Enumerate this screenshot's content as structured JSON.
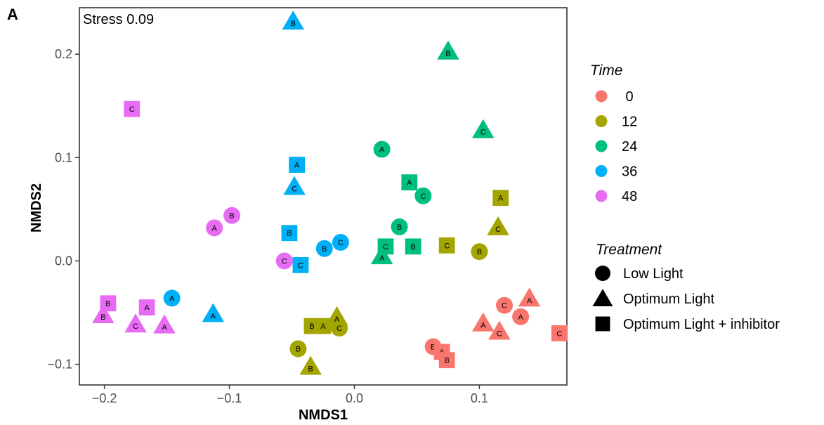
{
  "chart_data": {
    "type": "scatter",
    "panel_label": "A",
    "annotation": "Stress 0.09",
    "xlabel": "NMDS1",
    "ylabel": "NMDS2",
    "xlim": [
      -0.22,
      0.17
    ],
    "ylim": [
      -0.12,
      0.245
    ],
    "x_ticks": [
      -0.2,
      -0.1,
      0.0,
      0.1
    ],
    "x_tick_labels": [
      "−0.2",
      "−0.1",
      "0.0",
      "0.1"
    ],
    "y_ticks": [
      -0.1,
      0.0,
      0.1,
      0.2
    ],
    "y_tick_labels": [
      "−0.1",
      "0.0",
      "0.1",
      "0.2"
    ],
    "grid": false,
    "legend_position": "right",
    "color_legend": {
      "title": "Time",
      "entries": [
        {
          "label": " 0",
          "value": "0",
          "color": "#F8766D"
        },
        {
          "label": "12",
          "value": "12",
          "color": "#A3A500"
        },
        {
          "label": "24",
          "value": "24",
          "color": "#00BF7D"
        },
        {
          "label": "36",
          "value": "36",
          "color": "#00B0F6"
        },
        {
          "label": "48",
          "value": "48",
          "color": "#E76BF3"
        }
      ]
    },
    "shape_legend": {
      "title": "Treatment",
      "entries": [
        {
          "label": "Low Light",
          "shape": "circle"
        },
        {
          "label": "Optimum Light",
          "shape": "triangle"
        },
        {
          "label": "Optimum Light + inhibitor",
          "shape": "square"
        }
      ]
    },
    "points": [
      {
        "x": 0.063,
        "y": -0.083,
        "time": "0",
        "treatment": "circle",
        "label": "B"
      },
      {
        "x": 0.12,
        "y": -0.043,
        "time": "0",
        "treatment": "circle",
        "label": "C"
      },
      {
        "x": 0.133,
        "y": -0.054,
        "time": "0",
        "treatment": "circle",
        "label": "A"
      },
      {
        "x": 0.14,
        "y": -0.036,
        "time": "0",
        "treatment": "triangle",
        "label": "A"
      },
      {
        "x": 0.103,
        "y": -0.06,
        "time": "0",
        "treatment": "triangle",
        "label": "A"
      },
      {
        "x": 0.116,
        "y": -0.068,
        "time": "0",
        "treatment": "triangle",
        "label": "C"
      },
      {
        "x": 0.07,
        "y": -0.088,
        "time": "0",
        "treatment": "square",
        "label": "A"
      },
      {
        "x": 0.074,
        "y": -0.096,
        "time": "0",
        "treatment": "square",
        "label": "B"
      },
      {
        "x": 0.164,
        "y": -0.07,
        "time": "0",
        "treatment": "square",
        "label": "C"
      },
      {
        "x": 0.1,
        "y": 0.009,
        "time": "12",
        "treatment": "circle",
        "label": "B"
      },
      {
        "x": -0.045,
        "y": -0.085,
        "time": "12",
        "treatment": "circle",
        "label": "B"
      },
      {
        "x": -0.012,
        "y": -0.065,
        "time": "12",
        "treatment": "circle",
        "label": "C"
      },
      {
        "x": 0.115,
        "y": 0.033,
        "time": "12",
        "treatment": "triangle",
        "label": "C"
      },
      {
        "x": -0.035,
        "y": -0.102,
        "time": "12",
        "treatment": "triangle",
        "label": "B"
      },
      {
        "x": -0.014,
        "y": -0.054,
        "time": "12",
        "treatment": "triangle",
        "label": "A"
      },
      {
        "x": 0.117,
        "y": 0.061,
        "time": "12",
        "treatment": "square",
        "label": "A"
      },
      {
        "x": 0.074,
        "y": 0.015,
        "time": "12",
        "treatment": "square",
        "label": "C"
      },
      {
        "x": -0.034,
        "y": -0.063,
        "time": "12",
        "treatment": "square",
        "label": "B"
      },
      {
        "x": -0.025,
        "y": -0.063,
        "time": "12",
        "treatment": "square",
        "label": "A"
      },
      {
        "x": 0.022,
        "y": 0.108,
        "time": "24",
        "treatment": "circle",
        "label": "A"
      },
      {
        "x": 0.055,
        "y": 0.063,
        "time": "24",
        "treatment": "circle",
        "label": "C"
      },
      {
        "x": 0.036,
        "y": 0.033,
        "time": "24",
        "treatment": "circle",
        "label": "B"
      },
      {
        "x": 0.075,
        "y": 0.203,
        "time": "24",
        "treatment": "triangle",
        "label": "B"
      },
      {
        "x": 0.103,
        "y": 0.127,
        "time": "24",
        "treatment": "triangle",
        "label": "C"
      },
      {
        "x": 0.022,
        "y": 0.005,
        "time": "24",
        "treatment": "triangle",
        "label": "A"
      },
      {
        "x": 0.044,
        "y": 0.076,
        "time": "24",
        "treatment": "square",
        "label": "A"
      },
      {
        "x": 0.047,
        "y": 0.014,
        "time": "24",
        "treatment": "square",
        "label": "B"
      },
      {
        "x": 0.025,
        "y": 0.014,
        "time": "24",
        "treatment": "square",
        "label": "C"
      },
      {
        "x": -0.024,
        "y": 0.012,
        "time": "36",
        "treatment": "circle",
        "label": "B"
      },
      {
        "x": -0.011,
        "y": 0.018,
        "time": "36",
        "treatment": "circle",
        "label": "C"
      },
      {
        "x": -0.146,
        "y": -0.036,
        "time": "36",
        "treatment": "circle",
        "label": "A"
      },
      {
        "x": -0.049,
        "y": 0.232,
        "time": "36",
        "treatment": "triangle",
        "label": "B"
      },
      {
        "x": -0.048,
        "y": 0.072,
        "time": "36",
        "treatment": "triangle",
        "label": "C"
      },
      {
        "x": -0.113,
        "y": -0.051,
        "time": "36",
        "treatment": "triangle",
        "label": "A"
      },
      {
        "x": -0.046,
        "y": 0.093,
        "time": "36",
        "treatment": "square",
        "label": "A"
      },
      {
        "x": -0.052,
        "y": 0.027,
        "time": "36",
        "treatment": "square",
        "label": "B"
      },
      {
        "x": -0.043,
        "y": -0.004,
        "time": "36",
        "treatment": "square",
        "label": "C"
      },
      {
        "x": -0.112,
        "y": 0.032,
        "time": "48",
        "treatment": "circle",
        "label": "A"
      },
      {
        "x": -0.098,
        "y": 0.044,
        "time": "48",
        "treatment": "circle",
        "label": "B"
      },
      {
        "x": -0.056,
        "y": 0.0,
        "time": "48",
        "treatment": "circle",
        "label": "C"
      },
      {
        "x": -0.201,
        "y": -0.052,
        "time": "48",
        "treatment": "triangle",
        "label": "B"
      },
      {
        "x": -0.175,
        "y": -0.061,
        "time": "48",
        "treatment": "triangle",
        "label": "C"
      },
      {
        "x": -0.152,
        "y": -0.062,
        "time": "48",
        "treatment": "triangle",
        "label": "A"
      },
      {
        "x": -0.178,
        "y": 0.147,
        "time": "48",
        "treatment": "square",
        "label": "C"
      },
      {
        "x": -0.197,
        "y": -0.041,
        "time": "48",
        "treatment": "square",
        "label": "B"
      },
      {
        "x": -0.166,
        "y": -0.045,
        "time": "48",
        "treatment": "square",
        "label": "A"
      }
    ]
  }
}
